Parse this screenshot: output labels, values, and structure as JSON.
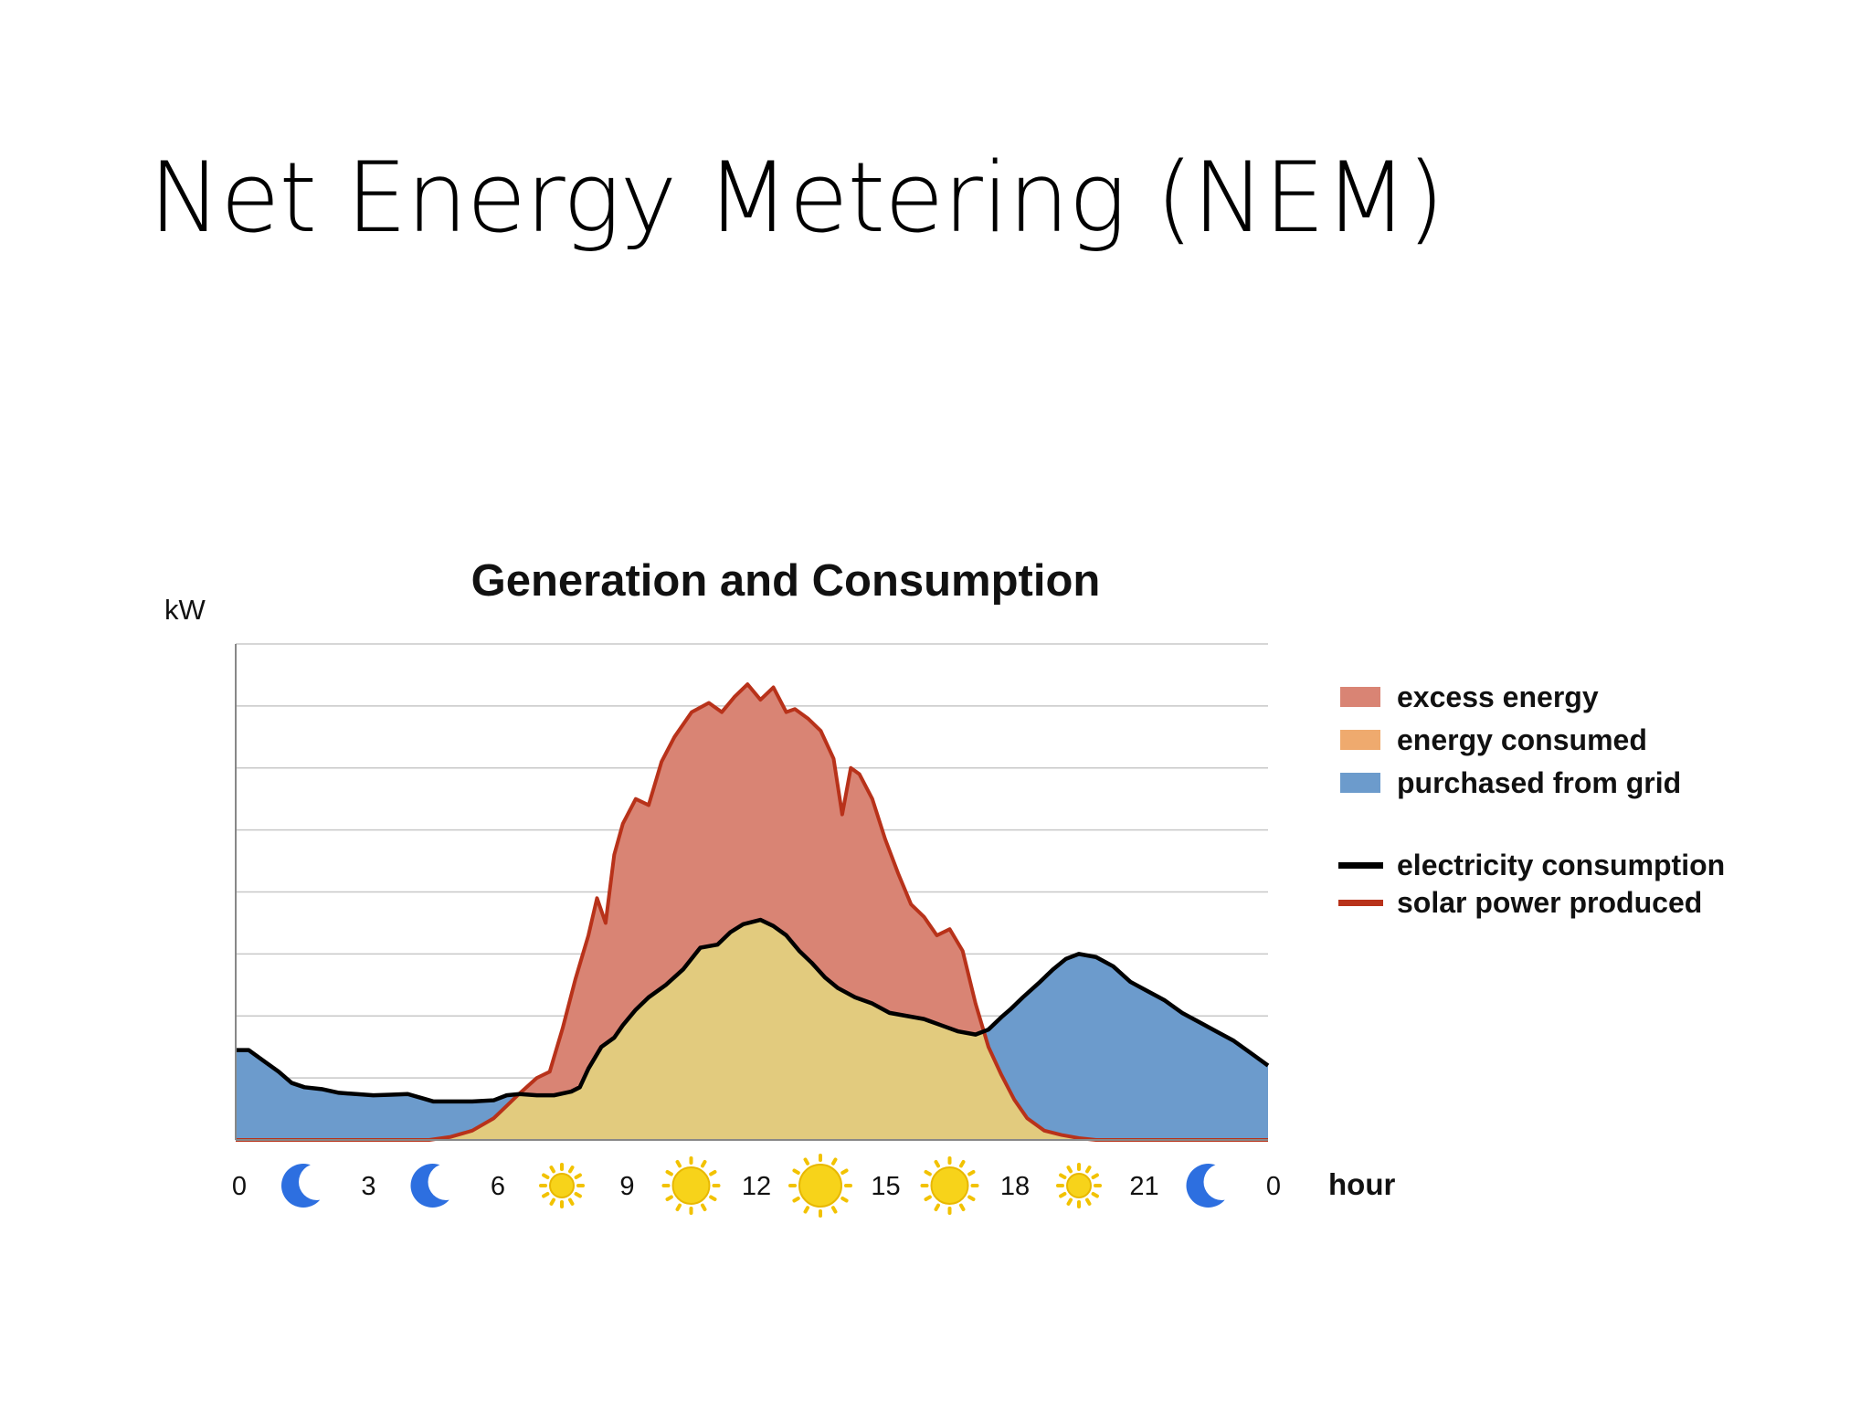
{
  "slide": {
    "title": "Net Energy Metering (NEM)"
  },
  "colors": {
    "excess": "#D98474",
    "consumed": "#E2CB7E",
    "grid": "#6C9BCC",
    "consumption_line": "#000000",
    "solar_line": "#B8321A",
    "legend_consumed": "#EFAA6E",
    "gridline": "#C8C8C8",
    "moon": "#2D6FE0",
    "sun": "#F7D31A"
  },
  "chart_data": {
    "type": "area",
    "title": "Generation and Consumption",
    "ylabel": "kW",
    "xlabel": "hour",
    "xlim": [
      0,
      24
    ],
    "ylim": [
      0,
      8
    ],
    "grid": true,
    "legend_position": "right",
    "x_ticks": [
      "0",
      "3",
      "6",
      "9",
      "12",
      "15",
      "18",
      "21",
      "0"
    ],
    "tick_icons": [
      "moon-icon",
      "moon-icon",
      "sun-icon",
      "sun-icon",
      "sun-icon",
      "sun-icon",
      "sun-icon",
      "moon-icon"
    ],
    "legend": [
      {
        "label": "excess energy",
        "kind": "area",
        "color_key": "excess"
      },
      {
        "label": "energy consumed",
        "kind": "area",
        "color_key": "legend_consumed"
      },
      {
        "label": "purchased from grid",
        "kind": "area",
        "color_key": "grid"
      },
      {
        "label": "electricity consumption",
        "kind": "line",
        "color_key": "consumption_line"
      },
      {
        "label": "solar power produced",
        "kind": "line",
        "color_key": "solar_line"
      }
    ],
    "series": [
      {
        "name": "electricity consumption",
        "x": [
          0,
          0.3,
          0.7,
          1.0,
          1.3,
          1.6,
          2.0,
          2.4,
          2.8,
          3.2,
          3.6,
          4.0,
          4.4,
          4.6,
          4.8,
          5.0,
          5.5,
          6.0,
          6.3,
          6.6,
          7.0,
          7.4,
          7.8,
          8.0,
          8.2,
          8.5,
          8.8,
          9.0,
          9.3,
          9.6,
          10.0,
          10.4,
          10.8,
          11.2,
          11.5,
          11.8,
          12.2,
          12.5,
          12.8,
          13.1,
          13.4,
          13.7,
          14.0,
          14.4,
          14.8,
          15.2,
          15.6,
          16.0,
          16.4,
          16.8,
          17.2,
          17.5,
          17.8,
          18.0,
          18.3,
          18.7,
          19.0,
          19.3,
          19.6,
          20.0,
          20.4,
          20.8,
          21.2,
          21.6,
          22.0,
          22.4,
          22.8,
          23.2,
          23.6,
          24.0
        ],
        "y": [
          1.45,
          1.45,
          1.25,
          1.1,
          0.92,
          0.85,
          0.82,
          0.76,
          0.74,
          0.72,
          0.73,
          0.74,
          0.66,
          0.62,
          0.62,
          0.62,
          0.62,
          0.64,
          0.72,
          0.74,
          0.72,
          0.72,
          0.78,
          0.85,
          1.15,
          1.5,
          1.65,
          1.85,
          2.1,
          2.3,
          2.5,
          2.75,
          3.1,
          3.15,
          3.35,
          3.48,
          3.55,
          3.45,
          3.3,
          3.05,
          2.85,
          2.62,
          2.45,
          2.3,
          2.2,
          2.05,
          2.0,
          1.95,
          1.85,
          1.75,
          1.7,
          1.78,
          1.98,
          2.1,
          2.3,
          2.55,
          2.75,
          2.92,
          3.0,
          2.95,
          2.8,
          2.55,
          2.4,
          2.25,
          2.05,
          1.9,
          1.75,
          1.6,
          1.4,
          1.2
        ]
      },
      {
        "name": "solar power produced",
        "x": [
          0,
          4.5,
          5.0,
          5.5,
          6.0,
          6.3,
          6.6,
          7.0,
          7.3,
          7.6,
          7.9,
          8.2,
          8.4,
          8.6,
          8.8,
          9.0,
          9.3,
          9.6,
          9.9,
          10.2,
          10.6,
          11.0,
          11.3,
          11.6,
          11.9,
          12.2,
          12.5,
          12.8,
          13.0,
          13.3,
          13.6,
          13.9,
          14.1,
          14.3,
          14.5,
          14.8,
          15.1,
          15.4,
          15.7,
          16.0,
          16.3,
          16.6,
          16.9,
          17.2,
          17.5,
          17.8,
          18.1,
          18.4,
          18.8,
          19.2,
          19.6,
          20.0,
          20.5,
          21.0,
          24.0
        ],
        "y": [
          0,
          0,
          0.05,
          0.15,
          0.35,
          0.55,
          0.75,
          1.0,
          1.1,
          1.8,
          2.6,
          3.3,
          3.9,
          3.5,
          4.6,
          5.1,
          5.5,
          5.4,
          6.1,
          6.5,
          6.9,
          7.05,
          6.9,
          7.15,
          7.35,
          7.1,
          7.3,
          6.9,
          6.95,
          6.8,
          6.6,
          6.15,
          5.25,
          6.0,
          5.9,
          5.5,
          4.85,
          4.3,
          3.8,
          3.6,
          3.3,
          3.4,
          3.05,
          2.2,
          1.5,
          1.05,
          0.65,
          0.35,
          0.15,
          0.08,
          0.03,
          0,
          0,
          0,
          0
        ]
      }
    ]
  }
}
